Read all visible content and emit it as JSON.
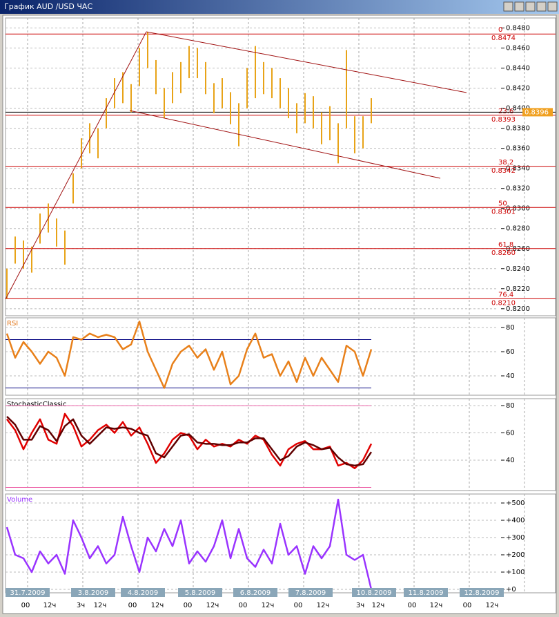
{
  "window": {
    "title": "График AUD /USD  ЧАС"
  },
  "chart_data": [
    {
      "type": "ohlc",
      "color": "#e8a317",
      "highs": [
        0.824,
        0.8272,
        0.8268,
        0.8262,
        0.8295,
        0.8305,
        0.829,
        0.8278,
        0.8335,
        0.837,
        0.8385,
        0.838,
        0.841,
        0.843,
        0.8436,
        0.8424,
        0.846,
        0.8476,
        0.8448,
        0.842,
        0.8436,
        0.8446,
        0.8462,
        0.846,
        0.8446,
        0.8425,
        0.843,
        0.8416,
        0.8405,
        0.844,
        0.8462,
        0.8446,
        0.844,
        0.843,
        0.842,
        0.8405,
        0.8415,
        0.8412,
        0.8396,
        0.8402,
        0.8385,
        0.8458,
        0.8392,
        0.8392,
        0.841
      ],
      "lows": [
        0.821,
        0.8245,
        0.824,
        0.8236,
        0.8265,
        0.8276,
        0.8262,
        0.8244,
        0.8305,
        0.834,
        0.8355,
        0.835,
        0.838,
        0.84,
        0.8405,
        0.8396,
        0.8422,
        0.844,
        0.8414,
        0.839,
        0.8405,
        0.8415,
        0.843,
        0.843,
        0.8414,
        0.8395,
        0.84,
        0.8384,
        0.8362,
        0.84,
        0.841,
        0.8414,
        0.841,
        0.84,
        0.839,
        0.8375,
        0.8385,
        0.838,
        0.8364,
        0.8368,
        0.8345,
        0.838,
        0.8355,
        0.836,
        0.8385
      ],
      "ylim": [
        0.8193,
        0.849
      ],
      "yticks": [
        {
          "value": 0.848,
          "label": "0.8480"
        },
        {
          "value": 0.846,
          "label": "0.8460"
        },
        {
          "value": 0.844,
          "label": "0.8440"
        },
        {
          "value": 0.842,
          "label": "0.8420"
        },
        {
          "value": 0.84,
          "label": "0.8400"
        },
        {
          "value": 0.838,
          "label": "0.8380"
        },
        {
          "value": 0.836,
          "label": "0.8360"
        },
        {
          "value": 0.834,
          "label": "0.8340"
        },
        {
          "value": 0.832,
          "label": "0.8320"
        },
        {
          "value": 0.83,
          "label": "0.8300"
        },
        {
          "value": 0.828,
          "label": "0.8280"
        },
        {
          "value": 0.826,
          "label": "0.8260"
        },
        {
          "value": 0.824,
          "label": "0.8240"
        },
        {
          "value": 0.822,
          "label": "0.8220"
        },
        {
          "value": 0.82,
          "label": "0.8200"
        }
      ],
      "grid": true,
      "current_price": 0.8396,
      "current_price_color": "#f0a020",
      "fib_color": "#cc0000",
      "fib_levels": [
        {
          "ratio": 0,
          "price": 0.8474
        },
        {
          "ratio": 23.6,
          "price": 0.8393
        },
        {
          "ratio": 38.2,
          "price": 0.8342
        },
        {
          "ratio": 50,
          "price": 0.8301
        },
        {
          "ratio": 61.8,
          "price": {
            "value": 0.826,
            "label": "0.8260"
          }
        },
        {
          "ratio": 76.4,
          "price": {
            "value": 0.821,
            "label": "0.8210"
          }
        }
      ]
    },
    {
      "type": "line",
      "title": "RSI",
      "title_color": "#e07010",
      "color": "#e8801a",
      "values": [
        75,
        55,
        68,
        60,
        50,
        60,
        55,
        40,
        72,
        70,
        75,
        72,
        74,
        72,
        62,
        66,
        85,
        60,
        45,
        30,
        50,
        60,
        65,
        55,
        62,
        45,
        60,
        33,
        40,
        62,
        75,
        55,
        58,
        40,
        52,
        35,
        55,
        40,
        55,
        45,
        35,
        65,
        60,
        40,
        62
      ],
      "ylim": [
        24,
        88
      ],
      "yticks": [
        80,
        60,
        40
      ],
      "grid": true,
      "levels": [
        70,
        30
      ],
      "level_color": "#000080"
    },
    {
      "type": "line",
      "title": "StochasticClassic",
      "title_color": "#000000",
      "series": [
        {
          "color": "#e00000",
          "values": [
            70,
            62,
            48,
            60,
            70,
            55,
            52,
            74,
            65,
            50,
            55,
            62,
            66,
            60,
            68,
            58,
            64,
            52,
            38,
            45,
            55,
            60,
            58,
            48,
            55,
            50,
            52,
            50,
            55,
            52,
            58,
            55,
            44,
            36,
            48,
            52,
            54,
            48,
            48,
            50,
            36,
            38,
            34,
            40,
            52
          ]
        },
        {
          "color": "#600000",
          "values": [
            72,
            66,
            55,
            55,
            65,
            62,
            54,
            65,
            70,
            58,
            52,
            58,
            64,
            63,
            64,
            63,
            60,
            58,
            45,
            42,
            50,
            58,
            59,
            53,
            52,
            52,
            51,
            51,
            53,
            53,
            56,
            56,
            48,
            40,
            43,
            50,
            53,
            51,
            48,
            49,
            42,
            37,
            36,
            37,
            46
          ]
        }
      ],
      "ylim": [
        17.7,
        85.1
      ],
      "yticks": [
        80,
        60,
        40
      ],
      "grid": true,
      "levels": [
        80,
        20
      ],
      "level_color": "#ee66aa"
    },
    {
      "type": "line",
      "title": "Volume",
      "title_color": "#9933ff",
      "color": "#9933ff",
      "values": [
        360,
        200,
        180,
        100,
        220,
        150,
        200,
        90,
        400,
        300,
        180,
        250,
        150,
        200,
        420,
        250,
        100,
        300,
        220,
        350,
        250,
        400,
        150,
        220,
        160,
        250,
        400,
        180,
        350,
        180,
        130,
        230,
        150,
        380,
        200,
        250,
        90,
        250,
        180,
        250,
        520,
        200,
        170,
        200,
        0
      ],
      "ylim": [
        -20,
        552
      ],
      "yticks": [
        {
          "value": 500,
          "label": "+500"
        },
        {
          "value": 400,
          "label": "+400"
        },
        {
          "value": 300,
          "label": "+300"
        },
        {
          "value": 200,
          "label": "+200"
        },
        {
          "value": 100,
          "label": "+100"
        },
        {
          "value": 0,
          "label": "+0"
        }
      ],
      "grid": true
    }
  ],
  "x_axis": {
    "dates": [
      "31.7.2009",
      "3.8.2009",
      "4.8.2009",
      "5.8.2009",
      "6.8.2009",
      "7.8.2009",
      "10.8.2009",
      "11.8.2009",
      "12.8.2009"
    ],
    "hours": [
      "00",
      "12ч",
      "3ч",
      "12ч",
      "00",
      "12ч",
      "00",
      "12ч",
      "00",
      "12ч",
      "00",
      "12ч",
      "3ч",
      "12ч",
      "00",
      "12ч",
      "00",
      "12ч"
    ]
  }
}
